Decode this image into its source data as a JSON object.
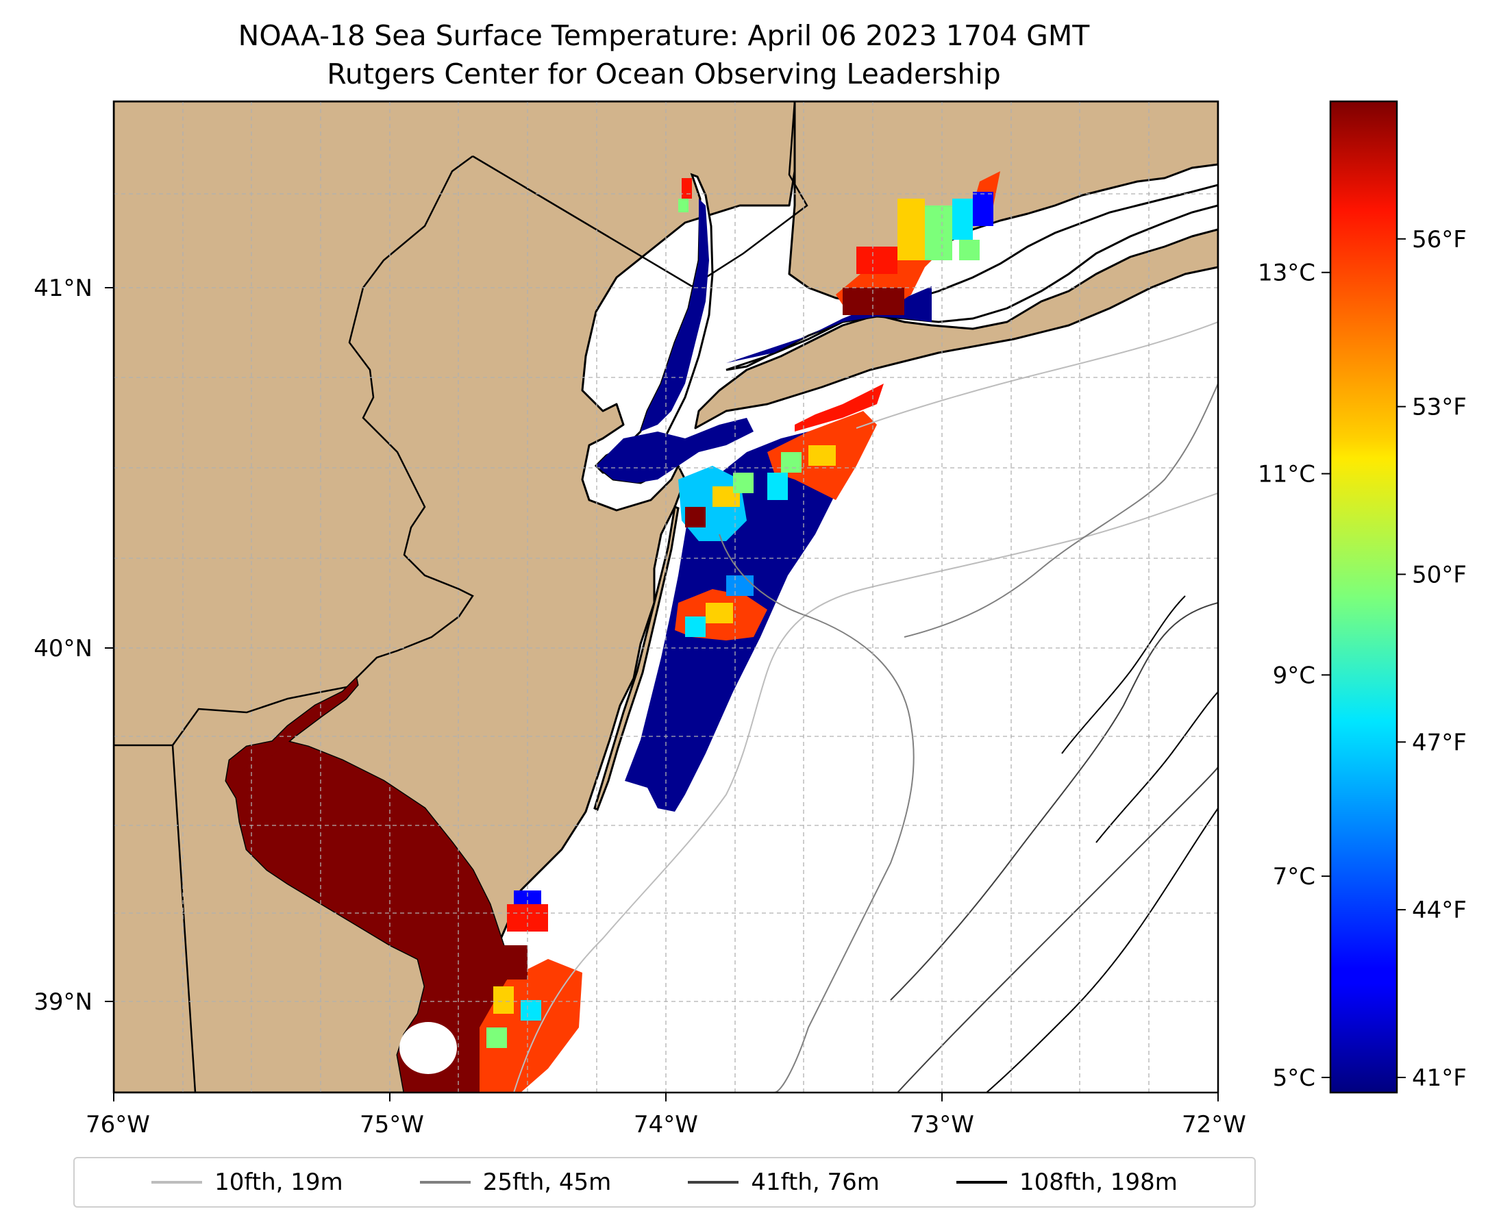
{
  "title": {
    "line1": "NOAA-18 Sea Surface Temperature: April 06 2023 1704 GMT",
    "line2": "Rutgers Center for Ocean Observing Leadership"
  },
  "axes": {
    "lon_ticks": [
      "76°W",
      "75°W",
      "74°W",
      "73°W",
      "72°W"
    ],
    "lat_ticks": [
      "41°N",
      "40°N",
      "39°N"
    ],
    "lon_range": [
      -76,
      -72
    ],
    "lat_range": [
      38.75,
      41.5
    ]
  },
  "colorbar": {
    "colormap": "jet",
    "min_c": 4.85,
    "max_c": 14.7,
    "celsius_ticks": [
      {
        "value": 13,
        "label": "13°C"
      },
      {
        "value": 11,
        "label": "11°C"
      },
      {
        "value": 9,
        "label": "9°C"
      },
      {
        "value": 7,
        "label": "7°C"
      },
      {
        "value": 5,
        "label": "5°C"
      }
    ],
    "fahrenheit_ticks": [
      {
        "value": 56,
        "label": "56°F"
      },
      {
        "value": 53,
        "label": "53°F"
      },
      {
        "value": 50,
        "label": "50°F"
      },
      {
        "value": 47,
        "label": "47°F"
      },
      {
        "value": 44,
        "label": "44°F"
      },
      {
        "value": 41,
        "label": "41°F"
      }
    ]
  },
  "legend": {
    "items": [
      {
        "label": "10fth, 19m",
        "color": "#bdbdbd"
      },
      {
        "label": "25fth, 45m",
        "color": "#808080"
      },
      {
        "label": "41fth, 76m",
        "color": "#404040"
      },
      {
        "label": "108fth, 198m",
        "color": "#000000"
      }
    ]
  },
  "colors": {
    "land": "#d2b48c",
    "ocean": "#ffffff",
    "cold": "#00008f",
    "warm": "#7f0000"
  }
}
